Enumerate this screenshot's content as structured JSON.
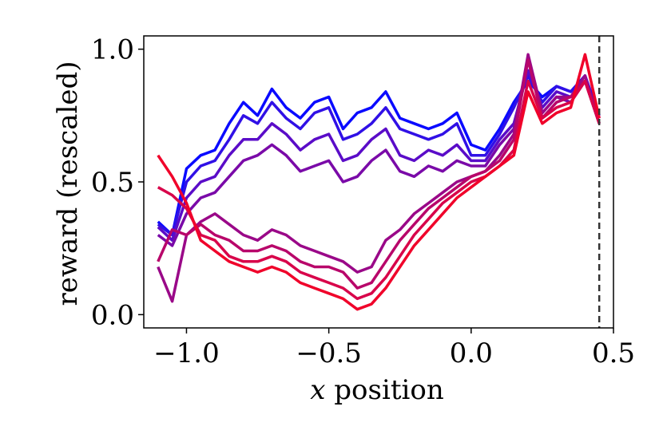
{
  "chart_data": {
    "type": "line",
    "title": "",
    "xlabel_var": "x",
    "xlabel_rest": " position",
    "ylabel": "reward (rescaled)",
    "xlim": [
      -1.15,
      0.5
    ],
    "ylim": [
      -0.05,
      1.05
    ],
    "xticks": [
      -1.0,
      -0.5,
      0.0,
      0.5
    ],
    "xtick_labels": [
      "−1.0",
      "−0.5",
      "0.0",
      "0.5"
    ],
    "yticks": [
      0.0,
      0.5,
      1.0
    ],
    "ytick_labels": [
      "0.0",
      "0.5",
      "1.0"
    ],
    "grid": false,
    "legend": "none",
    "vline": {
      "x": 0.45,
      "style": "dashed",
      "color": "#333333"
    },
    "x": [
      -1.1,
      -1.05,
      -1.0,
      -0.95,
      -0.9,
      -0.85,
      -0.8,
      -0.75,
      -0.7,
      -0.65,
      -0.6,
      -0.55,
      -0.5,
      -0.45,
      -0.4,
      -0.35,
      -0.3,
      -0.25,
      -0.2,
      -0.15,
      -0.1,
      -0.05,
      0.0,
      0.05,
      0.1,
      0.15,
      0.2,
      0.25,
      0.3,
      0.35,
      0.4,
      0.45
    ],
    "series": [
      {
        "color": "#0a0aff",
        "values": [
          0.35,
          0.3,
          0.55,
          0.6,
          0.62,
          0.72,
          0.8,
          0.75,
          0.85,
          0.78,
          0.74,
          0.8,
          0.82,
          0.7,
          0.76,
          0.78,
          0.84,
          0.74,
          0.72,
          0.7,
          0.72,
          0.76,
          0.64,
          0.62,
          0.7,
          0.8,
          0.88,
          0.82,
          0.86,
          0.84,
          0.9,
          0.75
        ]
      },
      {
        "color": "#3010e6",
        "values": [
          0.34,
          0.3,
          0.5,
          0.56,
          0.58,
          0.66,
          0.75,
          0.72,
          0.8,
          0.74,
          0.7,
          0.76,
          0.78,
          0.66,
          0.68,
          0.72,
          0.78,
          0.7,
          0.68,
          0.66,
          0.68,
          0.72,
          0.6,
          0.6,
          0.68,
          0.78,
          0.9,
          0.8,
          0.86,
          0.84,
          0.9,
          0.74
        ]
      },
      {
        "color": "#5a0cc8",
        "values": [
          0.33,
          0.28,
          0.44,
          0.5,
          0.52,
          0.6,
          0.66,
          0.66,
          0.72,
          0.68,
          0.62,
          0.66,
          0.68,
          0.58,
          0.6,
          0.66,
          0.7,
          0.6,
          0.58,
          0.62,
          0.6,
          0.64,
          0.58,
          0.58,
          0.66,
          0.72,
          0.92,
          0.78,
          0.84,
          0.82,
          0.88,
          0.74
        ]
      },
      {
        "color": "#7a0aa8",
        "values": [
          0.3,
          0.26,
          0.38,
          0.44,
          0.46,
          0.52,
          0.58,
          0.6,
          0.64,
          0.6,
          0.54,
          0.56,
          0.58,
          0.5,
          0.52,
          0.58,
          0.62,
          0.54,
          0.52,
          0.56,
          0.54,
          0.58,
          0.56,
          0.56,
          0.64,
          0.7,
          0.96,
          0.76,
          0.82,
          0.8,
          0.88,
          0.72
        ]
      },
      {
        "color": "#9a0888",
        "values": [
          0.18,
          0.05,
          0.3,
          0.35,
          0.38,
          0.34,
          0.3,
          0.28,
          0.32,
          0.3,
          0.26,
          0.24,
          0.22,
          0.2,
          0.16,
          0.18,
          0.28,
          0.32,
          0.38,
          0.42,
          0.46,
          0.5,
          0.52,
          0.54,
          0.6,
          0.68,
          0.98,
          0.76,
          0.82,
          0.82,
          0.9,
          0.72
        ]
      },
      {
        "color": "#b8066a",
        "values": [
          0.2,
          0.32,
          0.3,
          0.34,
          0.3,
          0.28,
          0.24,
          0.24,
          0.26,
          0.24,
          0.2,
          0.18,
          0.18,
          0.16,
          0.1,
          0.12,
          0.2,
          0.28,
          0.34,
          0.4,
          0.44,
          0.48,
          0.52,
          0.54,
          0.58,
          0.66,
          0.96,
          0.74,
          0.8,
          0.82,
          0.88,
          0.72
        ]
      },
      {
        "color": "#d8044a",
        "values": [
          0.48,
          0.45,
          0.4,
          0.3,
          0.28,
          0.22,
          0.2,
          0.2,
          0.22,
          0.2,
          0.16,
          0.14,
          0.12,
          0.1,
          0.06,
          0.08,
          0.14,
          0.22,
          0.3,
          0.36,
          0.42,
          0.46,
          0.5,
          0.52,
          0.56,
          0.62,
          0.88,
          0.74,
          0.78,
          0.8,
          0.88,
          0.72
        ]
      },
      {
        "color": "#f0022a",
        "values": [
          0.6,
          0.52,
          0.42,
          0.28,
          0.24,
          0.2,
          0.18,
          0.16,
          0.18,
          0.16,
          0.12,
          0.1,
          0.08,
          0.06,
          0.02,
          0.04,
          0.1,
          0.18,
          0.26,
          0.32,
          0.38,
          0.44,
          0.48,
          0.52,
          0.56,
          0.6,
          0.84,
          0.72,
          0.76,
          0.78,
          0.98,
          0.74
        ]
      }
    ]
  }
}
